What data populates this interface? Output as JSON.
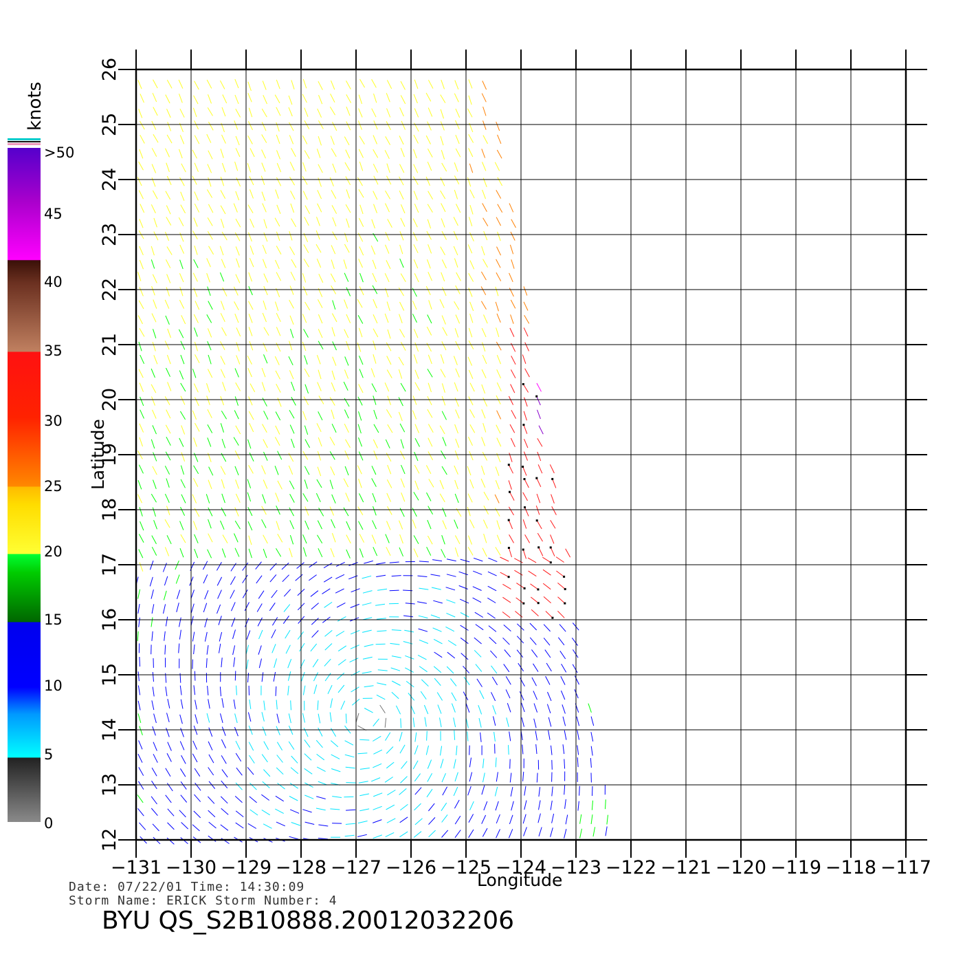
{
  "map": {
    "lon_ticks": [
      "−131",
      "−130",
      "−129",
      "−128",
      "−127",
      "−126",
      "−125",
      "−124",
      "−123",
      "−122",
      "−121",
      "−120",
      "−119",
      "−118",
      "−117"
    ],
    "lat_ticks": [
      "12",
      "13",
      "14",
      "15",
      "16",
      "17",
      "18",
      "19",
      "20",
      "21",
      "22",
      "23",
      "24",
      "25",
      "26"
    ],
    "xlabel": "Longitude",
    "ylabel": "Latitude"
  },
  "colorbar": {
    "units": "knots",
    "labels": [
      "0",
      "5",
      "10",
      "15",
      "20",
      "25",
      "30",
      "35",
      "40",
      "45",
      ">50"
    ],
    "colors": [
      "#777777",
      "#00e5ff",
      "#0000ff",
      "#00ff00",
      "#ffff22",
      "#ff8000",
      "#ff1a1a",
      "#b07050",
      "#ff00ff",
      "#8800cc"
    ]
  },
  "info": {
    "date_line": "Date:  07/22/01    Time:  14:30:09",
    "storm_line": "Storm  Name:  ERICK     Storm  Number:  4",
    "product": "BYU  QS_S2B10888.20012032206"
  }
}
